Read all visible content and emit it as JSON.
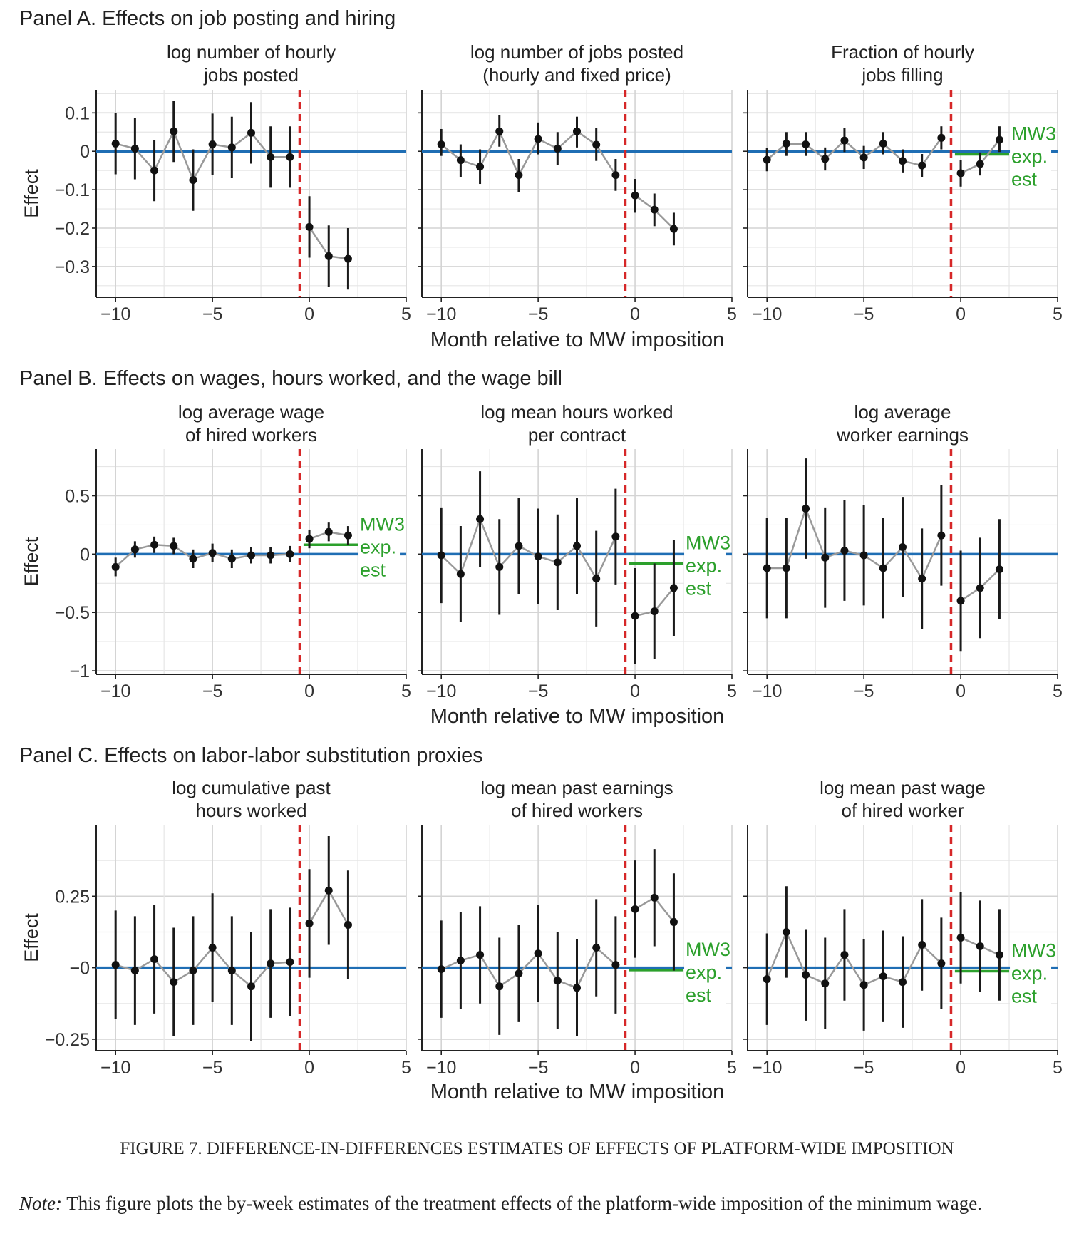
{
  "figure": {
    "caption": "FIGURE 7. DIFFERENCE-IN-DIFFERENCES ESTIMATES OF EFFECTS OF PLATFORM-WIDE IMPOSITION",
    "note_label": "Note:",
    "note_text": "This figure plots the by-week estimates of the treatment effects of the platform-wide imposition of the minimum wage."
  },
  "colors": {
    "zero_line": "#1f6eb4",
    "event_line": "#d62728",
    "mw3": "#2ca02c",
    "points": "#111111",
    "connector": "#999999",
    "grid": "#d4d4d4"
  },
  "panels": [
    {
      "title": "Panel A. Effects on job posting and hiring",
      "ylabel": "Effect",
      "xlabel": "Month relative to MW imposition"
    },
    {
      "title": "Panel B. Effects on wages, hours worked, and the wage bill",
      "ylabel": "Effect",
      "xlabel": "Month relative to MW imposition"
    },
    {
      "title": "Panel C. Effects on labor-labor substitution proxies",
      "ylabel": "Effect",
      "xlabel": "Month relative to MW imposition"
    }
  ],
  "chart_data": [
    {
      "type": "scatter",
      "panel": 0,
      "subplot": 0,
      "title_lines": [
        "log number of hourly",
        "jobs posted"
      ],
      "xlim": [
        -11,
        5
      ],
      "ylim": [
        -0.38,
        0.16
      ],
      "xticks": [
        -10,
        -5,
        0,
        5
      ],
      "xtick_labels": [
        "−10",
        "−5",
        "0",
        "5"
      ],
      "yticks": [
        0.1,
        0,
        -0.1,
        -0.2,
        -0.3
      ],
      "ytick_labels": [
        "0.1",
        "0",
        "−0.1",
        "−0.2",
        "−0.3"
      ],
      "event_x": -0.5,
      "mw3": null,
      "x": [
        -10,
        -9,
        -8,
        -7,
        -6,
        -5,
        -4,
        -3,
        -2,
        -1,
        0,
        1,
        2
      ],
      "y": [
        0.02,
        0.007,
        -0.05,
        0.052,
        -0.075,
        0.018,
        0.01,
        0.048,
        -0.015,
        -0.015,
        -0.197,
        -0.273,
        -0.28
      ],
      "ci_lo": [
        -0.06,
        -0.073,
        -0.13,
        -0.028,
        -0.155,
        -0.062,
        -0.07,
        -0.032,
        -0.095,
        -0.095,
        -0.277,
        -0.353,
        -0.36
      ],
      "ci_hi": [
        0.1,
        0.087,
        0.03,
        0.132,
        0.005,
        0.098,
        0.09,
        0.128,
        0.065,
        0.065,
        -0.117,
        -0.193,
        -0.2
      ]
    },
    {
      "type": "scatter",
      "panel": 0,
      "subplot": 1,
      "title_lines": [
        "log number of jobs posted",
        "(hourly and fixed price)"
      ],
      "xlim": [
        -11,
        5
      ],
      "ylim": [
        -0.38,
        0.16
      ],
      "xticks": [
        -10,
        -5,
        0,
        5
      ],
      "xtick_labels": [
        "−10",
        "−5",
        "0",
        "5"
      ],
      "yticks": [
        0.1,
        0,
        -0.1,
        -0.2,
        -0.3
      ],
      "ytick_labels": [
        "",
        "",
        "",
        "",
        ""
      ],
      "event_x": -0.5,
      "mw3": null,
      "x": [
        -10,
        -9,
        -8,
        -7,
        -6,
        -5,
        -4,
        -3,
        -2,
        -1,
        0,
        1,
        2
      ],
      "y": [
        0.018,
        -0.023,
        -0.04,
        0.052,
        -0.062,
        0.032,
        0.007,
        0.052,
        0.017,
        -0.062,
        -0.115,
        -0.152,
        -0.202
      ],
      "ci_lo": [
        -0.012,
        -0.068,
        -0.085,
        0.012,
        -0.107,
        -0.008,
        -0.035,
        0.01,
        -0.025,
        -0.103,
        -0.16,
        -0.195,
        -0.245
      ],
      "ci_hi": [
        0.058,
        0.018,
        0.005,
        0.095,
        -0.02,
        0.075,
        0.05,
        0.09,
        0.06,
        -0.02,
        -0.072,
        -0.11,
        -0.16
      ]
    },
    {
      "type": "scatter",
      "panel": 0,
      "subplot": 2,
      "title_lines": [
        "Fraction of hourly",
        "jobs filling"
      ],
      "xlim": [
        -11,
        5
      ],
      "ylim": [
        -0.38,
        0.16
      ],
      "xticks": [
        -10,
        -5,
        0,
        5
      ],
      "xtick_labels": [
        "−10",
        "−5",
        "0",
        "5"
      ],
      "yticks": [
        0.1,
        0,
        -0.1,
        -0.2,
        -0.3
      ],
      "ytick_labels": [
        "",
        "",
        "",
        "",
        ""
      ],
      "event_x": -0.5,
      "mw3": {
        "value": -0.008,
        "label_lines": [
          "MW3",
          "exp.",
          "est"
        ]
      },
      "x": [
        -10,
        -9,
        -8,
        -7,
        -6,
        -5,
        -4,
        -3,
        -2,
        -1,
        0,
        1,
        2
      ],
      "y": [
        -0.022,
        0.02,
        0.018,
        -0.02,
        0.028,
        -0.016,
        0.02,
        -0.025,
        -0.037,
        0.035,
        -0.057,
        -0.033,
        0.03
      ],
      "ci_lo": [
        -0.052,
        -0.012,
        -0.012,
        -0.05,
        -0.002,
        -0.046,
        -0.008,
        -0.055,
        -0.067,
        0.005,
        -0.092,
        -0.063,
        -0.002
      ],
      "ci_hi": [
        0.008,
        0.05,
        0.05,
        0.01,
        0.06,
        0.014,
        0.05,
        0.005,
        -0.007,
        0.065,
        -0.022,
        -0.003,
        0.065
      ]
    },
    {
      "type": "scatter",
      "panel": 1,
      "subplot": 0,
      "title_lines": [
        "log average wage",
        "of hired workers"
      ],
      "xlim": [
        -11,
        5
      ],
      "ylim": [
        -1.03,
        0.9
      ],
      "xticks": [
        -10,
        -5,
        0,
        5
      ],
      "xtick_labels": [
        "−10",
        "−5",
        "0",
        "5"
      ],
      "yticks": [
        0.5,
        0,
        -0.5,
        -1
      ],
      "ytick_labels": [
        "0.5",
        "0",
        "−0.5",
        "−1"
      ],
      "event_x": -0.5,
      "mw3": {
        "value": 0.08,
        "label_lines": [
          "MW3",
          "exp.",
          "est"
        ]
      },
      "x": [
        -10,
        -9,
        -8,
        -7,
        -6,
        -5,
        -4,
        -3,
        -2,
        -1,
        0,
        1,
        2
      ],
      "y": [
        -0.11,
        0.04,
        0.08,
        0.07,
        -0.04,
        0.01,
        -0.04,
        -0.01,
        -0.01,
        0.0,
        0.13,
        0.19,
        0.16
      ],
      "ci_lo": [
        -0.19,
        -0.03,
        0.01,
        0.0,
        -0.12,
        -0.07,
        -0.12,
        -0.08,
        -0.08,
        -0.07,
        0.05,
        0.11,
        0.08
      ],
      "ci_hi": [
        -0.03,
        0.11,
        0.15,
        0.14,
        0.04,
        0.09,
        0.04,
        0.06,
        0.06,
        0.07,
        0.21,
        0.27,
        0.24
      ]
    },
    {
      "type": "scatter",
      "panel": 1,
      "subplot": 1,
      "title_lines": [
        "log mean hours worked",
        "per contract"
      ],
      "xlim": [
        -11,
        5
      ],
      "ylim": [
        -1.03,
        0.9
      ],
      "xticks": [
        -10,
        -5,
        0,
        5
      ],
      "xtick_labels": [
        "−10",
        "−5",
        "0",
        "5"
      ],
      "yticks": [
        0.5,
        0,
        -0.5,
        -1
      ],
      "ytick_labels": [
        "",
        "",
        "",
        "",
        ""
      ],
      "event_x": -0.5,
      "mw3": {
        "value": -0.08,
        "label_lines": [
          "MW3",
          "exp.",
          "est"
        ]
      },
      "x": [
        -10,
        -9,
        -8,
        -7,
        -6,
        -5,
        -4,
        -3,
        -2,
        -1,
        0,
        1,
        2
      ],
      "y": [
        -0.01,
        -0.17,
        0.3,
        -0.11,
        0.07,
        -0.02,
        -0.07,
        0.07,
        -0.21,
        0.15,
        -0.53,
        -0.49,
        -0.29
      ],
      "ci_lo": [
        -0.42,
        -0.58,
        -0.11,
        -0.52,
        -0.34,
        -0.43,
        -0.48,
        -0.34,
        -0.62,
        -0.26,
        -0.94,
        -0.9,
        -0.7
      ],
      "ci_hi": [
        0.4,
        0.24,
        0.71,
        0.3,
        0.48,
        0.39,
        0.34,
        0.48,
        0.2,
        0.56,
        -0.12,
        -0.08,
        0.12
      ]
    },
    {
      "type": "scatter",
      "panel": 1,
      "subplot": 2,
      "title_lines": [
        "log average",
        "worker earnings"
      ],
      "xlim": [
        -11,
        5
      ],
      "ylim": [
        -1.03,
        0.9
      ],
      "xticks": [
        -10,
        -5,
        0,
        5
      ],
      "xtick_labels": [
        "−10",
        "−5",
        "0",
        "5"
      ],
      "yticks": [
        0.5,
        0,
        -0.5,
        -1
      ],
      "ytick_labels": [
        "",
        "",
        "",
        "",
        ""
      ],
      "event_x": -0.5,
      "mw3": null,
      "x": [
        -10,
        -9,
        -8,
        -7,
        -6,
        -5,
        -4,
        -3,
        -2,
        -1,
        0,
        1,
        2
      ],
      "y": [
        -0.12,
        -0.12,
        0.39,
        -0.03,
        0.03,
        -0.01,
        -0.12,
        0.06,
        -0.21,
        0.16,
        -0.4,
        -0.29,
        -0.13
      ],
      "ci_lo": [
        -0.55,
        -0.55,
        -0.04,
        -0.46,
        -0.4,
        -0.44,
        -0.55,
        -0.37,
        -0.64,
        -0.27,
        -0.83,
        -0.72,
        -0.56
      ],
      "ci_hi": [
        0.31,
        0.31,
        0.82,
        0.4,
        0.46,
        0.42,
        0.31,
        0.49,
        0.22,
        0.59,
        0.03,
        0.14,
        0.3
      ]
    },
    {
      "type": "scatter",
      "panel": 2,
      "subplot": 0,
      "title_lines": [
        "log cumulative past",
        "hours worked"
      ],
      "xlim": [
        -11,
        5
      ],
      "ylim": [
        -0.29,
        0.5
      ],
      "xticks": [
        -10,
        -5,
        0,
        5
      ],
      "xtick_labels": [
        "−10",
        "−5",
        "0",
        "5"
      ],
      "yticks": [
        0.25,
        0,
        -0.25
      ],
      "ytick_labels": [
        "0.25",
        "−0",
        "−0.25"
      ],
      "event_x": -0.5,
      "mw3": null,
      "x": [
        -10,
        -9,
        -8,
        -7,
        -6,
        -5,
        -4,
        -3,
        -2,
        -1,
        0,
        1,
        2
      ],
      "y": [
        0.01,
        -0.01,
        0.03,
        -0.05,
        -0.01,
        0.07,
        -0.01,
        -0.065,
        0.015,
        0.02,
        0.155,
        0.27,
        0.15
      ],
      "ci_lo": [
        -0.18,
        -0.2,
        -0.16,
        -0.24,
        -0.2,
        -0.12,
        -0.2,
        -0.255,
        -0.175,
        -0.17,
        -0.035,
        0.08,
        -0.04
      ],
      "ci_hi": [
        0.2,
        0.18,
        0.22,
        0.14,
        0.18,
        0.26,
        0.18,
        0.125,
        0.205,
        0.21,
        0.345,
        0.46,
        0.34
      ]
    },
    {
      "type": "scatter",
      "panel": 2,
      "subplot": 1,
      "title_lines": [
        "log mean past earnings",
        "of hired workers"
      ],
      "xlim": [
        -11,
        5
      ],
      "ylim": [
        -0.29,
        0.5
      ],
      "xticks": [
        -10,
        -5,
        0,
        5
      ],
      "xtick_labels": [
        "−10",
        "−5",
        "0",
        "5"
      ],
      "yticks": [
        0.25,
        0,
        -0.25
      ],
      "ytick_labels": [
        "",
        "",
        ""
      ],
      "event_x": -0.5,
      "mw3": {
        "value": -0.008,
        "label_lines": [
          "MW3",
          "exp.",
          "est"
        ]
      },
      "x": [
        -10,
        -9,
        -8,
        -7,
        -6,
        -5,
        -4,
        -3,
        -2,
        -1,
        0,
        1,
        2
      ],
      "y": [
        -0.005,
        0.025,
        0.045,
        -0.065,
        -0.02,
        0.05,
        -0.045,
        -0.07,
        0.07,
        0.01,
        0.205,
        0.245,
        0.16
      ],
      "ci_lo": [
        -0.175,
        -0.145,
        -0.125,
        -0.235,
        -0.19,
        -0.12,
        -0.215,
        -0.24,
        -0.1,
        -0.16,
        0.035,
        0.075,
        -0.01
      ],
      "ci_hi": [
        0.165,
        0.195,
        0.215,
        0.105,
        0.15,
        0.22,
        0.125,
        0.1,
        0.24,
        0.18,
        0.375,
        0.415,
        0.33
      ]
    },
    {
      "type": "scatter",
      "panel": 2,
      "subplot": 2,
      "title_lines": [
        "log mean past wage",
        "of hired worker"
      ],
      "xlim": [
        -11,
        5
      ],
      "ylim": [
        -0.29,
        0.5
      ],
      "xticks": [
        -10,
        -5,
        0,
        5
      ],
      "xtick_labels": [
        "−10",
        "−5",
        "0",
        "5"
      ],
      "yticks": [
        0.25,
        0,
        -0.25
      ],
      "ytick_labels": [
        "",
        "",
        ""
      ],
      "event_x": -0.5,
      "mw3": {
        "value": -0.012,
        "label_lines": [
          "MW3",
          "exp.",
          "est"
        ]
      },
      "x": [
        -10,
        -9,
        -8,
        -7,
        -6,
        -5,
        -4,
        -3,
        -2,
        -1,
        0,
        1,
        2
      ],
      "y": [
        -0.04,
        0.125,
        -0.025,
        -0.055,
        0.045,
        -0.06,
        -0.03,
        -0.05,
        0.08,
        0.015,
        0.105,
        0.075,
        0.045
      ],
      "ci_lo": [
        -0.2,
        -0.035,
        -0.185,
        -0.215,
        -0.115,
        -0.22,
        -0.19,
        -0.21,
        -0.08,
        -0.145,
        -0.055,
        -0.085,
        -0.115
      ],
      "ci_hi": [
        0.12,
        0.285,
        0.135,
        0.105,
        0.205,
        0.1,
        0.13,
        0.11,
        0.24,
        0.175,
        0.265,
        0.235,
        0.205
      ]
    }
  ]
}
